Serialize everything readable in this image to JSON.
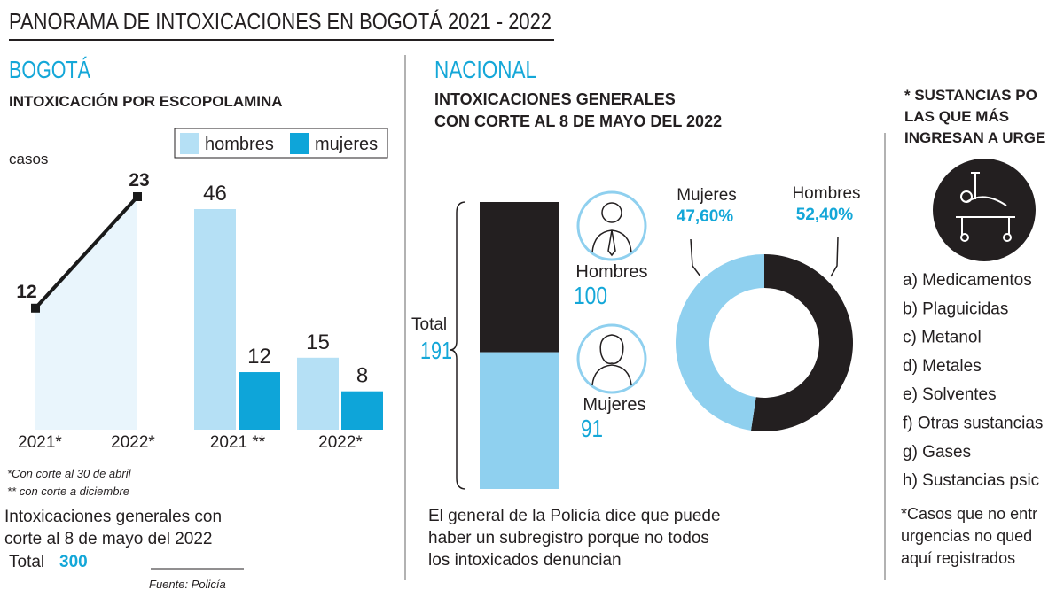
{
  "header": {
    "title": "PANORAMA DE INTOXICACIONES EN BOGOTÁ 2021 - 2022"
  },
  "bogota": {
    "heading": "BOGOTÁ",
    "subtitle": "INTOXICACIÓN POR ESCOPOLAMINA",
    "notes": [
      "*Con corte al 30 de abril",
      "** con corte a diciembre"
    ],
    "summary": [
      "Intoxicaciones generales con",
      "corte al 8 de mayo del 2022"
    ],
    "total_label": "Total",
    "total": 300,
    "source": "Fuente: Policía"
  },
  "nacional": {
    "heading": "NACIONAL",
    "subtitle": [
      "INTOXICACIONES GENERALES",
      "CON CORTE AL 8 DE MAYO DEL 2022"
    ],
    "comment": [
      "El general de la Policía dice que puede",
      "haber un subregistro porque no todos",
      "los intoxicados denuncian"
    ]
  },
  "sustancias": {
    "title": [
      "* SUSTANCIAS PO",
      "LAS QUE MÁS",
      "INGRESAN A URGE"
    ],
    "items": [
      "a) Medicamentos",
      "b) Plaguicidas",
      "c) Metanol",
      "d) Metales",
      "e) Solventes",
      "f) Otras sustancias",
      "g) Gases",
      "h) Sustancias  psic"
    ],
    "note": [
      "*Casos que no entr",
      "urgencias no qued",
      "aquí registrados"
    ]
  },
  "chart_data": [
    {
      "type": "line",
      "y_label": "casos",
      "categories": [
        "2021*",
        "2022*"
      ],
      "values": [
        12,
        23
      ],
      "color": "#1a1a1a",
      "fill": "#e9f5fc"
    },
    {
      "type": "bar",
      "categories": [
        "2021 **",
        "2022*"
      ],
      "series": [
        {
          "name": "hombres",
          "color": "#b5e0f5",
          "values": [
            46,
            15
          ]
        },
        {
          "name": "mujeres",
          "color": "#0ea5d9",
          "values": [
            12,
            8
          ]
        }
      ]
    },
    {
      "type": "stacked_bar",
      "total_label": "Total",
      "total": 191,
      "series": [
        {
          "name": "Hombres",
          "color": "#231f20",
          "values": [
            100
          ]
        },
        {
          "name": "Mujeres",
          "color": "#8fd0ef",
          "values": [
            91
          ]
        }
      ]
    },
    {
      "type": "pie",
      "donut": true,
      "categories": [
        "Mujeres",
        "Hombres"
      ],
      "values": [
        47.6,
        52.4
      ],
      "value_labels": [
        "47,60%",
        "52,40%"
      ],
      "colors": [
        "#8fd0ef",
        "#231f20"
      ]
    }
  ]
}
